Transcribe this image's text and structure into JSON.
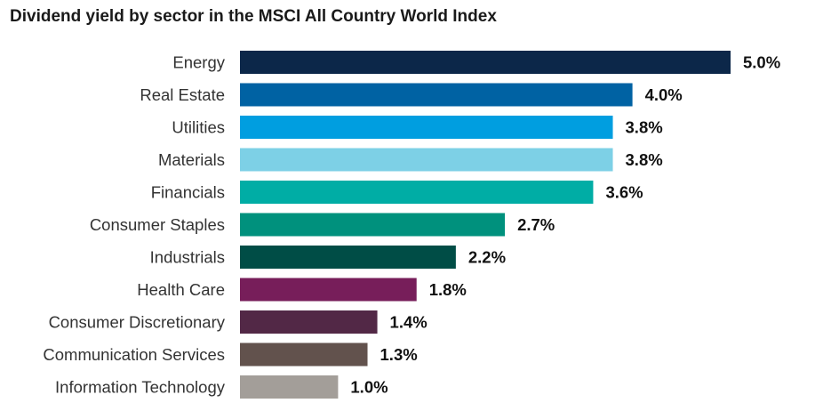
{
  "chart_data": {
    "type": "bar",
    "orientation": "horizontal",
    "title": "Dividend yield by sector in the MSCI All Country World Index",
    "categories": [
      "Energy",
      "Real Estate",
      "Utilities",
      "Materials",
      "Financials",
      "Consumer Staples",
      "Industrials",
      "Health Care",
      "Consumer Discretionary",
      "Communication Services",
      "Information Technology"
    ],
    "values": [
      5.0,
      4.0,
      3.8,
      3.8,
      3.6,
      2.7,
      2.2,
      1.8,
      1.4,
      1.3,
      1.0
    ],
    "value_labels": [
      "5.0%",
      "4.0%",
      "3.8%",
      "3.8%",
      "3.6%",
      "2.7%",
      "2.2%",
      "1.8%",
      "1.4%",
      "1.3%",
      "1.0%"
    ],
    "colors": [
      "#0c2749",
      "#0062a3",
      "#009ee0",
      "#7dd0e6",
      "#00ada5",
      "#00917d",
      "#004d46",
      "#771e5a",
      "#522846",
      "#62524d",
      "#a39e99"
    ],
    "xlim": [
      0,
      5.0
    ],
    "grid": false,
    "legend": "none"
  }
}
